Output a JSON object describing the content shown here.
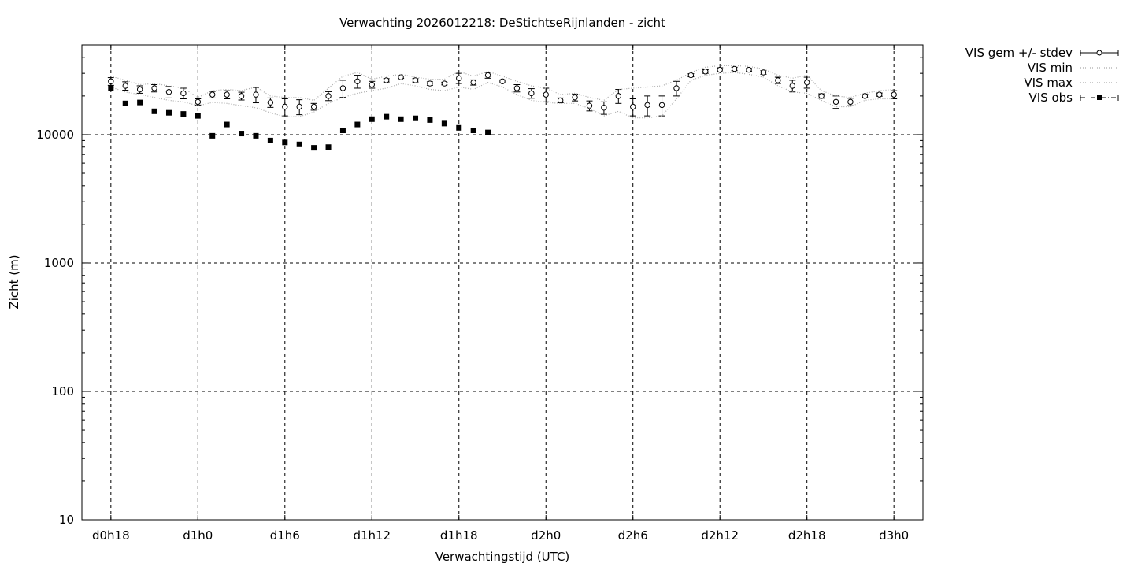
{
  "chart_data": {
    "type": "line",
    "title": "Verwachting 2026012218: DeStichtseRijnlanden - zicht",
    "xlabel": "Verwachtingstijd (UTC)",
    "ylabel": "Zicht (m)",
    "y_scale": "log",
    "ylim": [
      10,
      50000
    ],
    "xlim_hours": [
      16,
      74
    ],
    "grid": true,
    "legend_position": "outside-top-right",
    "x_ticks": [
      {
        "h": 18,
        "label": "d0h18"
      },
      {
        "h": 24,
        "label": "d1h0"
      },
      {
        "h": 30,
        "label": "d1h6"
      },
      {
        "h": 36,
        "label": "d1h12"
      },
      {
        "h": 42,
        "label": "d1h18"
      },
      {
        "h": 48,
        "label": "d2h0"
      },
      {
        "h": 54,
        "label": "d2h6"
      },
      {
        "h": 60,
        "label": "d2h12"
      },
      {
        "h": 66,
        "label": "d2h18"
      },
      {
        "h": 72,
        "label": "d3h0"
      }
    ],
    "y_ticks": [
      {
        "v": 10,
        "label": "10"
      },
      {
        "v": 100,
        "label": "100"
      },
      {
        "v": 1000,
        "label": "1000"
      },
      {
        "v": 10000,
        "label": "10000"
      }
    ],
    "series": [
      {
        "name": "VIS gem +/- stdev",
        "style": "points-errorbars",
        "x": [
          18,
          19,
          20,
          21,
          22,
          23,
          24,
          25,
          26,
          27,
          28,
          29,
          30,
          31,
          32,
          33,
          34,
          35,
          36,
          37,
          38,
          39,
          40,
          41,
          42,
          43,
          44,
          45,
          46,
          47,
          48,
          49,
          50,
          51,
          52,
          53,
          54,
          55,
          56,
          57,
          58,
          59,
          60,
          61,
          62,
          63,
          64,
          65,
          66,
          67,
          68,
          69,
          70,
          71,
          72
        ],
        "y": [
          26000,
          24000,
          22500,
          23000,
          21500,
          21000,
          18000,
          20500,
          20500,
          20000,
          20500,
          17800,
          16500,
          16500,
          16500,
          20000,
          23000,
          26000,
          24500,
          26500,
          28000,
          26500,
          25000,
          25000,
          27500,
          25500,
          29000,
          26000,
          23000,
          21000,
          20500,
          18500,
          19500,
          16800,
          16200,
          20000,
          16500,
          17000,
          17000,
          23000,
          29000,
          31000,
          32000,
          32500,
          32000,
          30500,
          26500,
          24000,
          25500,
          20000,
          18000,
          18000,
          20000,
          20500,
          20500
        ],
        "yerr": [
          1800,
          1800,
          1500,
          1500,
          2200,
          2000,
          1000,
          1200,
          1500,
          1400,
          2800,
          1500,
          2500,
          2200,
          1000,
          1600,
          3500,
          3000,
          1500,
          800,
          600,
          800,
          800,
          600,
          2500,
          1200,
          1500,
          700,
          1500,
          1800,
          2500,
          800,
          1200,
          1500,
          1800,
          2500,
          2500,
          3000,
          3000,
          3000,
          800,
          1000,
          1200,
          1000,
          800,
          1000,
          1500,
          2500,
          2500,
          800,
          2000,
          1200,
          600,
          600,
          1500
        ]
      },
      {
        "name": "VIS min",
        "style": "dotted",
        "x": [
          18,
          19,
          20,
          21,
          22,
          23,
          24,
          25,
          26,
          27,
          28,
          29,
          30,
          31,
          32,
          33,
          34,
          35,
          36,
          37,
          38,
          39,
          40,
          41,
          42,
          43,
          44,
          45,
          46,
          47,
          48,
          49,
          50,
          51,
          52,
          53,
          54,
          55,
          56,
          57,
          58,
          59,
          60,
          61,
          62,
          63,
          64,
          65,
          66,
          67,
          68,
          69,
          70,
          71,
          72
        ],
        "y": [
          23500,
          21500,
          20500,
          19500,
          18500,
          18000,
          16800,
          17800,
          17500,
          16800,
          16200,
          14800,
          13800,
          13800,
          15000,
          17500,
          19500,
          21000,
          22000,
          23000,
          25000,
          24000,
          22500,
          22000,
          23500,
          22500,
          25500,
          23500,
          20500,
          18500,
          17800,
          17500,
          17500,
          16000,
          14000,
          15200,
          13500,
          13500,
          14000,
          19000,
          26500,
          29000,
          30000,
          30500,
          29500,
          28000,
          24000,
          21500,
          21000,
          18500,
          16500,
          16500,
          18500,
          19000,
          19000
        ]
      },
      {
        "name": "VIS max",
        "style": "dotted",
        "x": [
          18,
          19,
          20,
          21,
          22,
          23,
          24,
          25,
          26,
          27,
          28,
          29,
          30,
          31,
          32,
          33,
          34,
          35,
          36,
          37,
          38,
          39,
          40,
          41,
          42,
          43,
          44,
          45,
          46,
          47,
          48,
          49,
          50,
          51,
          52,
          53,
          54,
          55,
          56,
          57,
          58,
          59,
          60,
          61,
          62,
          63,
          64,
          65,
          66,
          67,
          68,
          69,
          70,
          71,
          72
        ],
        "y": [
          28500,
          26500,
          24500,
          25000,
          24000,
          23000,
          19500,
          22000,
          22500,
          22000,
          23500,
          20000,
          19500,
          19500,
          18500,
          23000,
          28500,
          30500,
          27000,
          28500,
          29500,
          28000,
          27000,
          27000,
          31000,
          28500,
          31000,
          28500,
          26000,
          24000,
          23000,
          20500,
          21000,
          19500,
          18500,
          22500,
          23000,
          23500,
          24000,
          26500,
          30500,
          33500,
          34500,
          34500,
          34000,
          32500,
          29000,
          27500,
          29000,
          22000,
          20000,
          19500,
          21000,
          22000,
          22500
        ]
      },
      {
        "name": "VIS obs",
        "style": "points-line",
        "x": [
          18,
          19,
          20,
          21,
          22,
          23,
          24,
          25,
          26,
          27,
          28,
          29,
          30,
          31,
          32,
          33,
          34,
          35,
          36,
          37,
          38,
          39,
          40,
          41,
          42,
          43,
          44
        ],
        "y": [
          23000,
          17500,
          17800,
          15200,
          14800,
          14500,
          14000,
          9800,
          12000,
          10200,
          9800,
          9000,
          8700,
          8400,
          7900,
          8000,
          10800,
          12000,
          13200,
          13800,
          13200,
          13400,
          13000,
          12200,
          11300,
          10800,
          10400
        ]
      }
    ]
  }
}
